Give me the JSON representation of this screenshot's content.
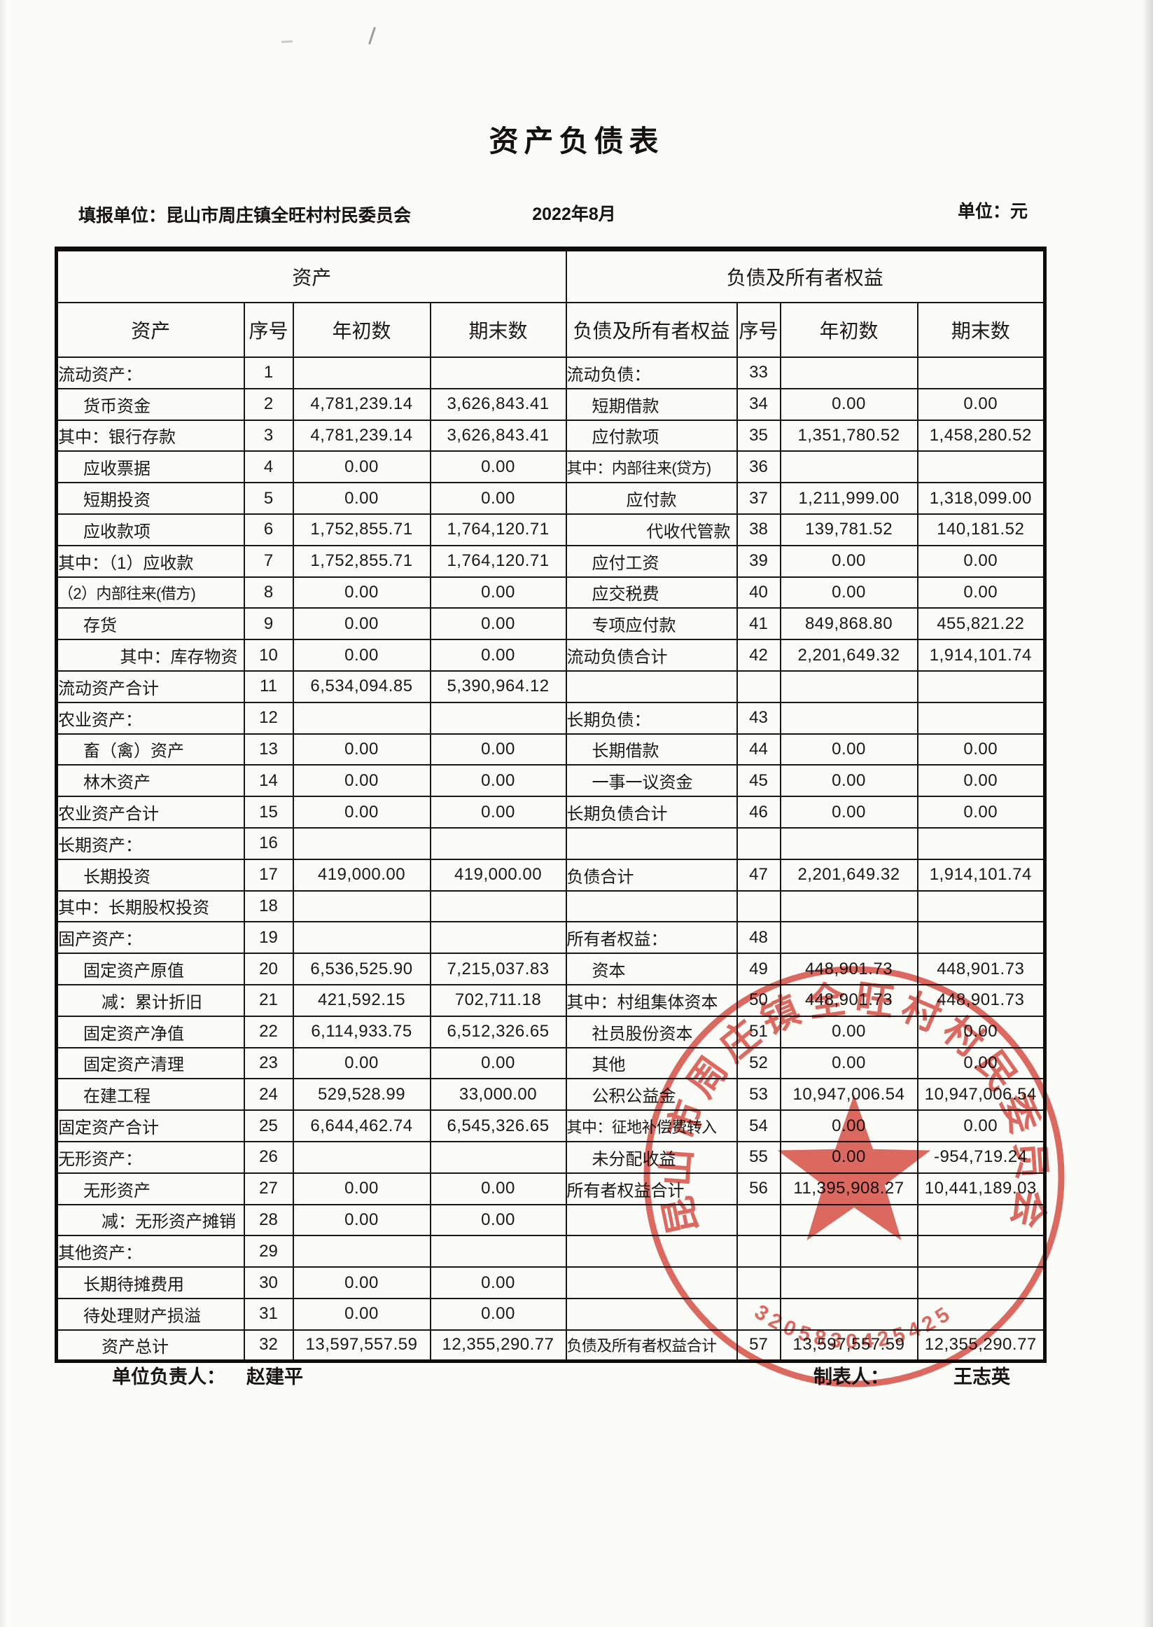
{
  "page": {
    "title": "资产负债表",
    "filer": "填报单位：昆山市周庄镇全旺村村民委员会",
    "period": "2022年8月",
    "unit": "单位：元"
  },
  "table": {
    "assets_group": "资产",
    "liabilities_group": "负债及所有者权益",
    "columns": {
      "asset": "资产",
      "seq": "序号",
      "begin": "年初数",
      "end": "期末数",
      "liability": "负债及所有者权益"
    },
    "rows": [
      {
        "left": {
          "label": "流动资产：",
          "no": "1",
          "begin": "",
          "end": "",
          "align": "i0"
        },
        "right": {
          "label": "流动负债：",
          "no": "33",
          "begin": "",
          "end": "",
          "align": "i0"
        }
      },
      {
        "left": {
          "label": "货币资金",
          "no": "2",
          "begin": "4,781,239.14",
          "end": "3,626,843.41",
          "align": "i1"
        },
        "right": {
          "label": "短期借款",
          "no": "34",
          "begin": "0.00",
          "end": "0.00",
          "align": "i1"
        }
      },
      {
        "left": {
          "label": "其中：银行存款",
          "no": "3",
          "begin": "4,781,239.14",
          "end": "3,626,843.41",
          "align": "i0"
        },
        "right": {
          "label": "应付款项",
          "no": "35",
          "begin": "1,351,780.52",
          "end": "1,458,280.52",
          "align": "i1"
        }
      },
      {
        "left": {
          "label": "应收票据",
          "no": "4",
          "begin": "0.00",
          "end": "0.00",
          "align": "i1"
        },
        "right": {
          "label": "其中：内部往来(贷方)",
          "no": "36",
          "begin": "",
          "end": "",
          "align": "i0"
        }
      },
      {
        "left": {
          "label": "短期投资",
          "no": "5",
          "begin": "0.00",
          "end": "0.00",
          "align": "i1"
        },
        "right": {
          "label": "应付款",
          "no": "37",
          "begin": "1,211,999.00",
          "end": "1,318,099.00",
          "align": "center"
        }
      },
      {
        "left": {
          "label": "应收款项",
          "no": "6",
          "begin": "1,752,855.71",
          "end": "1,764,120.71",
          "align": "i1"
        },
        "right": {
          "label": "代收代管款",
          "no": "38",
          "begin": "139,781.52",
          "end": "140,181.52",
          "align": "right"
        }
      },
      {
        "left": {
          "label": "其中：（1）应收款",
          "no": "7",
          "begin": "1,752,855.71",
          "end": "1,764,120.71",
          "align": "i0"
        },
        "right": {
          "label": "应付工资",
          "no": "39",
          "begin": "0.00",
          "end": "0.00",
          "align": "i1"
        }
      },
      {
        "left": {
          "label": "（2）内部往来(借方)",
          "no": "8",
          "begin": "0.00",
          "end": "0.00",
          "align": "i0"
        },
        "right": {
          "label": "应交税费",
          "no": "40",
          "begin": "0.00",
          "end": "0.00",
          "align": "i1"
        }
      },
      {
        "left": {
          "label": "存货",
          "no": "9",
          "begin": "0.00",
          "end": "0.00",
          "align": "i1"
        },
        "right": {
          "label": "专项应付款",
          "no": "41",
          "begin": "849,868.80",
          "end": "455,821.22",
          "align": "i1"
        }
      },
      {
        "left": {
          "label": "其中：库存物资",
          "no": "10",
          "begin": "0.00",
          "end": "0.00",
          "align": "right"
        },
        "right": {
          "label": "流动负债合计",
          "no": "42",
          "begin": "2,201,649.32",
          "end": "1,914,101.74",
          "align": "i0"
        }
      },
      {
        "left": {
          "label": "流动资产合计",
          "no": "11",
          "begin": "6,534,094.85",
          "end": "5,390,964.12",
          "align": "i0"
        },
        "right": {
          "label": "",
          "no": "",
          "begin": "",
          "end": "",
          "align": "i0"
        }
      },
      {
        "left": {
          "label": "农业资产：",
          "no": "12",
          "begin": "",
          "end": "",
          "align": "i0"
        },
        "right": {
          "label": "长期负债：",
          "no": "43",
          "begin": "",
          "end": "",
          "align": "i0"
        }
      },
      {
        "left": {
          "label": "畜（禽）资产",
          "no": "13",
          "begin": "0.00",
          "end": "0.00",
          "align": "i1"
        },
        "right": {
          "label": "长期借款",
          "no": "44",
          "begin": "0.00",
          "end": "0.00",
          "align": "i1"
        }
      },
      {
        "left": {
          "label": "林木资产",
          "no": "14",
          "begin": "0.00",
          "end": "0.00",
          "align": "i1"
        },
        "right": {
          "label": "一事一议资金",
          "no": "45",
          "begin": "0.00",
          "end": "0.00",
          "align": "i1"
        }
      },
      {
        "left": {
          "label": "农业资产合计",
          "no": "15",
          "begin": "0.00",
          "end": "0.00",
          "align": "i0"
        },
        "right": {
          "label": "长期负债合计",
          "no": "46",
          "begin": "0.00",
          "end": "0.00",
          "align": "i0"
        }
      },
      {
        "left": {
          "label": "长期资产：",
          "no": "16",
          "begin": "",
          "end": "",
          "align": "i0"
        },
        "right": {
          "label": "",
          "no": "",
          "begin": "",
          "end": "",
          "align": "i0"
        }
      },
      {
        "left": {
          "label": "长期投资",
          "no": "17",
          "begin": "419,000.00",
          "end": "419,000.00",
          "align": "i1"
        },
        "right": {
          "label": "负债合计",
          "no": "47",
          "begin": "2,201,649.32",
          "end": "1,914,101.74",
          "align": "i0"
        }
      },
      {
        "left": {
          "label": "其中：长期股权投资",
          "no": "18",
          "begin": "",
          "end": "",
          "align": "i0"
        },
        "right": {
          "label": "",
          "no": "",
          "begin": "",
          "end": "",
          "align": "i0"
        }
      },
      {
        "left": {
          "label": "固产资产：",
          "no": "19",
          "begin": "",
          "end": "",
          "align": "i0"
        },
        "right": {
          "label": "所有者权益：",
          "no": "48",
          "begin": "",
          "end": "",
          "align": "i0"
        }
      },
      {
        "left": {
          "label": "固定资产原值",
          "no": "20",
          "begin": "6,536,525.90",
          "end": "7,215,037.83",
          "align": "i1"
        },
        "right": {
          "label": "资本",
          "no": "49",
          "begin": "448,901.73",
          "end": "448,901.73",
          "align": "i1"
        }
      },
      {
        "left": {
          "label": "减：累计折旧",
          "no": "21",
          "begin": "421,592.15",
          "end": "702,711.18",
          "align": "i2"
        },
        "right": {
          "label": "其中：村组集体资本",
          "no": "50",
          "begin": "448,901.73",
          "end": "448,901.73",
          "align": "i0"
        }
      },
      {
        "left": {
          "label": "固定资产净值",
          "no": "22",
          "begin": "6,114,933.75",
          "end": "6,512,326.65",
          "align": "i1"
        },
        "right": {
          "label": "社员股份资本",
          "no": "51",
          "begin": "0.00",
          "end": "0.00",
          "align": "i1"
        }
      },
      {
        "left": {
          "label": "固定资产清理",
          "no": "23",
          "begin": "0.00",
          "end": "0.00",
          "align": "i1"
        },
        "right": {
          "label": "其他",
          "no": "52",
          "begin": "0.00",
          "end": "0.00",
          "align": "i1"
        }
      },
      {
        "left": {
          "label": "在建工程",
          "no": "24",
          "begin": "529,528.99",
          "end": "33,000.00",
          "align": "i1"
        },
        "right": {
          "label": "公积公益金",
          "no": "53",
          "begin": "10,947,006.54",
          "end": "10,947,006.54",
          "align": "i1"
        }
      },
      {
        "left": {
          "label": "固定资产合计",
          "no": "25",
          "begin": "6,644,462.74",
          "end": "6,545,326.65",
          "align": "i0"
        },
        "right": {
          "label": "其中：征地补偿费转入",
          "no": "54",
          "begin": "0.00",
          "end": "0.00",
          "align": "i0"
        }
      },
      {
        "left": {
          "label": "无形资产：",
          "no": "26",
          "begin": "",
          "end": "",
          "align": "i0"
        },
        "right": {
          "label": "未分配收益",
          "no": "55",
          "begin": "0.00",
          "end": "-954,719.24",
          "align": "i1"
        }
      },
      {
        "left": {
          "label": "无形资产",
          "no": "27",
          "begin": "0.00",
          "end": "0.00",
          "align": "i1"
        },
        "right": {
          "label": "所有者权益合计",
          "no": "56",
          "begin": "11,395,908.27",
          "end": "10,441,189.03",
          "align": "i0"
        }
      },
      {
        "left": {
          "label": "减：无形资产摊销",
          "no": "28",
          "begin": "0.00",
          "end": "0.00",
          "align": "i2"
        },
        "right": {
          "label": "",
          "no": "",
          "begin": "",
          "end": "",
          "align": "i0"
        }
      },
      {
        "left": {
          "label": "其他资产：",
          "no": "29",
          "begin": "",
          "end": "",
          "align": "i0"
        },
        "right": {
          "label": "",
          "no": "",
          "begin": "",
          "end": "",
          "align": "i0"
        }
      },
      {
        "left": {
          "label": "长期待摊费用",
          "no": "30",
          "begin": "0.00",
          "end": "0.00",
          "align": "i1"
        },
        "right": {
          "label": "",
          "no": "",
          "begin": "",
          "end": "",
          "align": "i0"
        }
      },
      {
        "left": {
          "label": "待处理财产损溢",
          "no": "31",
          "begin": "0.00",
          "end": "0.00",
          "align": "i1"
        },
        "right": {
          "label": "",
          "no": "",
          "begin": "",
          "end": "",
          "align": "i0"
        }
      },
      {
        "left": {
          "label": "资产总计",
          "no": "32",
          "begin": "13,597,557.59",
          "end": "12,355,290.77",
          "align": "i2"
        },
        "right": {
          "label": "负债及所有者权益合计",
          "no": "57",
          "begin": "13,597,557.59",
          "end": "12,355,290.77",
          "align": "i0"
        }
      }
    ]
  },
  "footer": {
    "responsible_label": "单位负责人：",
    "responsible_name": "赵建平",
    "preparer_label": "制表人：",
    "preparer_name": "王志英"
  },
  "stamp": {
    "text": "昆山市周庄镇全旺村村民委员会",
    "number": "3205830425425",
    "color": "#d8463c"
  }
}
